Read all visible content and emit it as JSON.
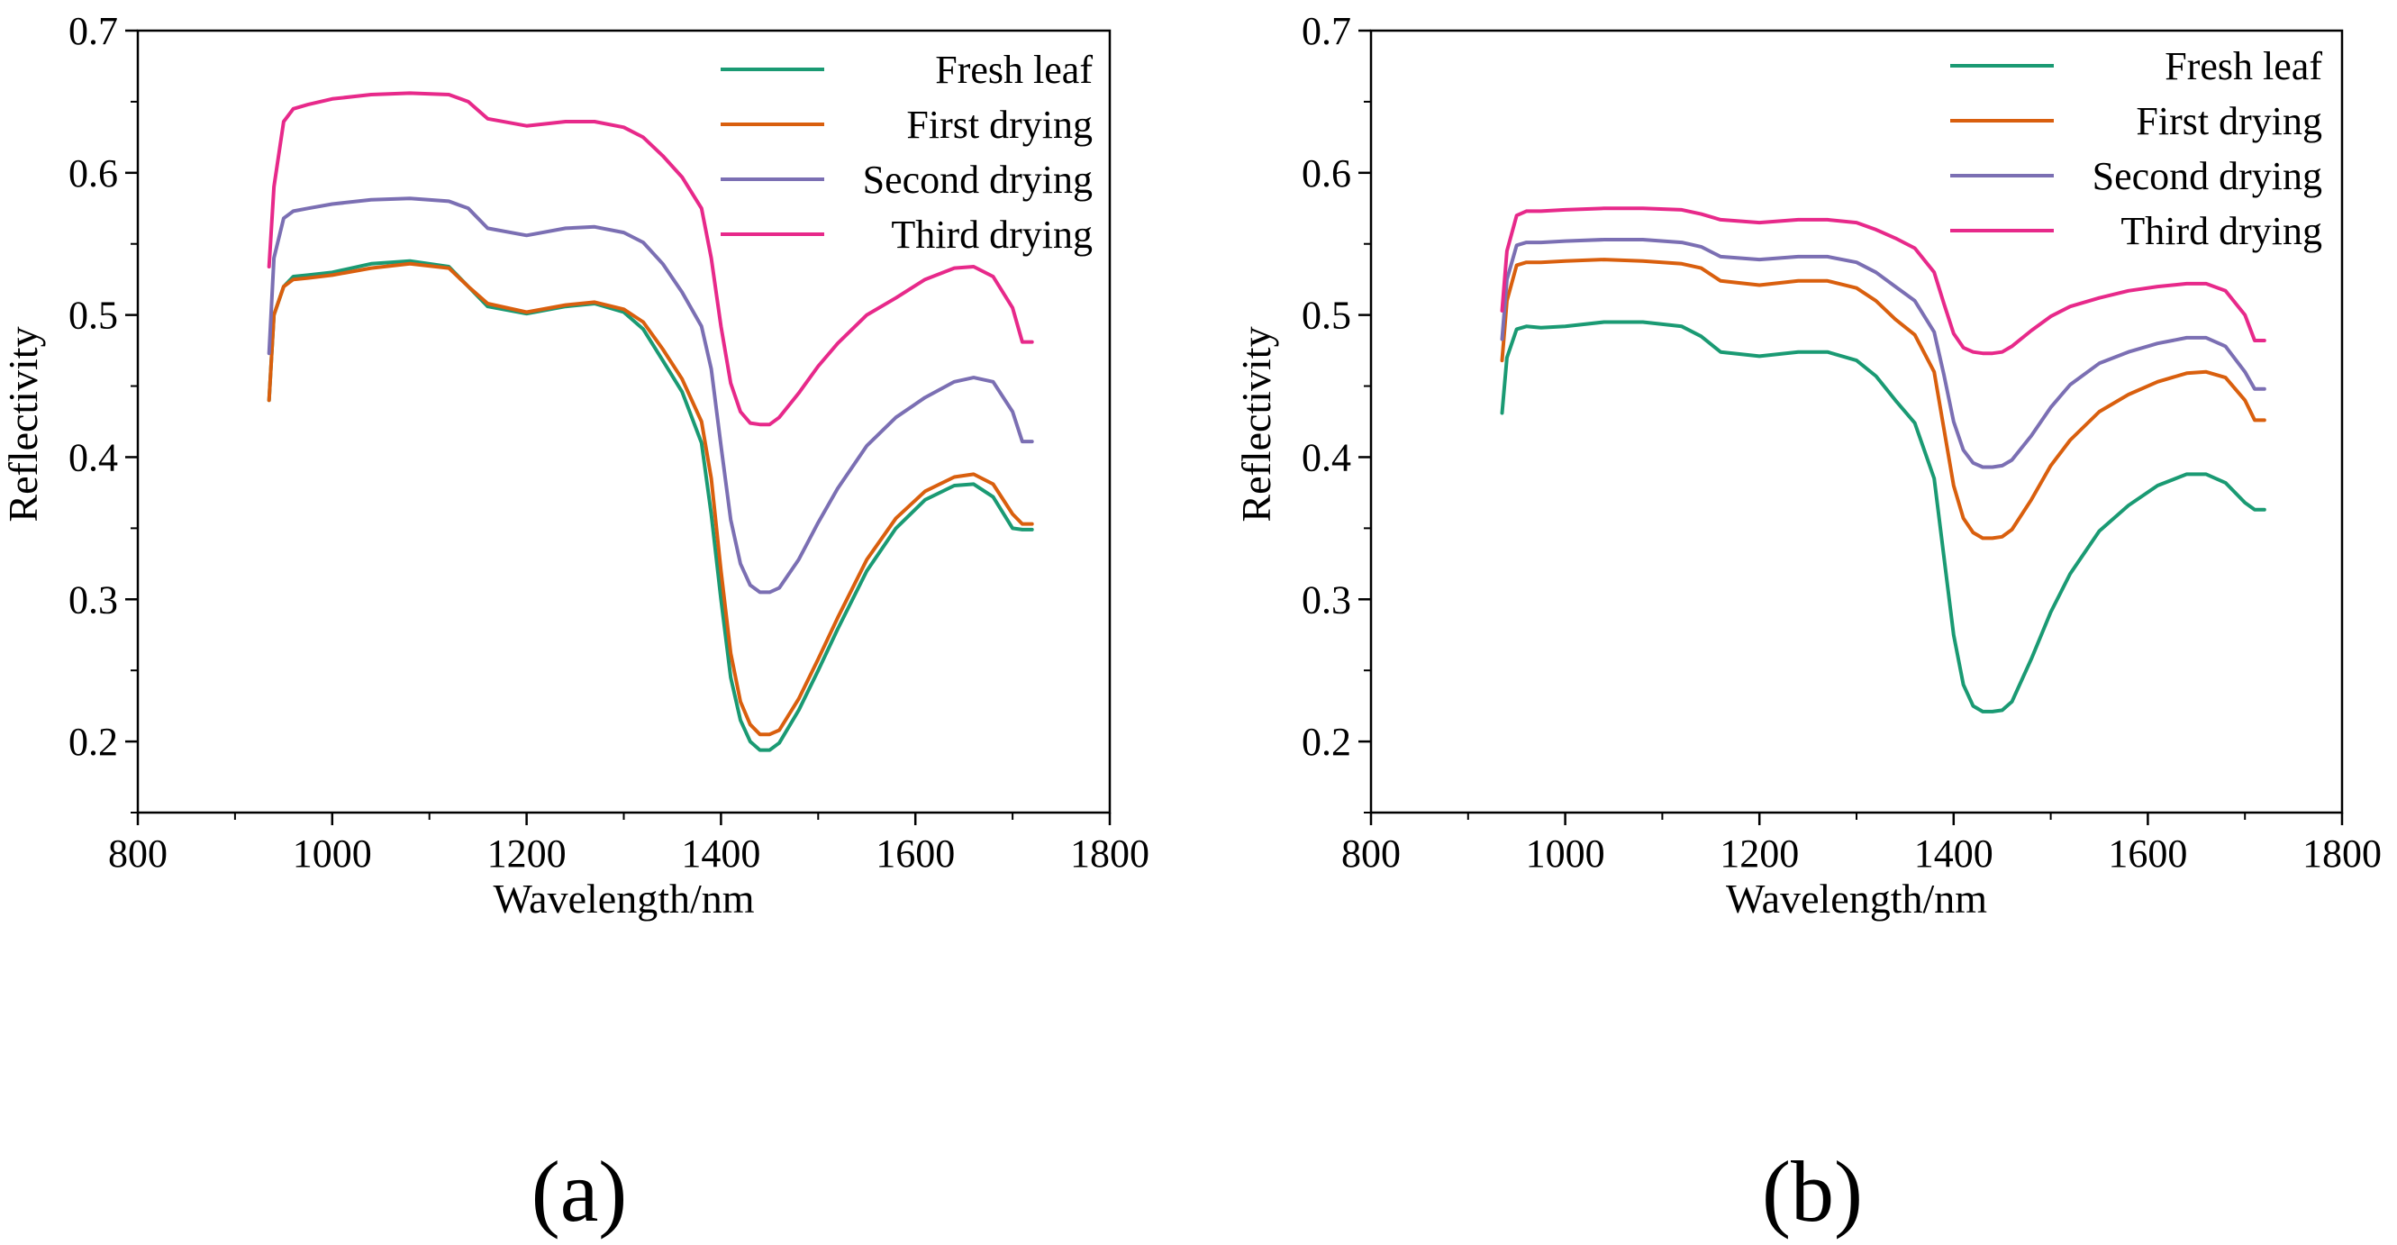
{
  "chart_data": [
    {
      "type": "line",
      "panel_label": "(a)",
      "title": "",
      "xlabel": "Wavelength/nm",
      "ylabel": "Reflectivity",
      "xlim": [
        800,
        1800
      ],
      "ylim": [
        0.15,
        0.7
      ],
      "xticks": [
        800,
        1000,
        1200,
        1400,
        1600,
        1800
      ],
      "yticks": [
        0.2,
        0.3,
        0.4,
        0.5,
        0.6,
        0.7
      ],
      "xtick_labels": [
        "800",
        "1000",
        "1200",
        "1400",
        "1600",
        "1800"
      ],
      "ytick_labels": [
        "0.2",
        "0.3",
        "0.4",
        "0.5",
        "0.6",
        "0.7"
      ],
      "grid": false,
      "legend_position": "top-right",
      "x": [
        935,
        940,
        950,
        960,
        975,
        1000,
        1040,
        1080,
        1120,
        1140,
        1160,
        1200,
        1240,
        1270,
        1300,
        1320,
        1340,
        1360,
        1380,
        1390,
        1400,
        1410,
        1420,
        1430,
        1440,
        1450,
        1460,
        1480,
        1500,
        1520,
        1550,
        1580,
        1610,
        1640,
        1660,
        1680,
        1700,
        1710,
        1720
      ],
      "series": [
        {
          "name": "Fresh leaf",
          "color": "#1a9a73",
          "values": [
            0.44,
            0.5,
            0.52,
            0.527,
            0.528,
            0.53,
            0.536,
            0.538,
            0.534,
            0.52,
            0.506,
            0.501,
            0.506,
            0.508,
            0.502,
            0.49,
            0.468,
            0.446,
            0.41,
            0.36,
            0.3,
            0.245,
            0.215,
            0.2,
            0.194,
            0.194,
            0.199,
            0.222,
            0.25,
            0.279,
            0.32,
            0.35,
            0.37,
            0.38,
            0.381,
            0.372,
            0.35,
            0.349,
            0.349
          ]
        },
        {
          "name": "First drying",
          "color": "#d95f0e",
          "values": [
            0.44,
            0.5,
            0.52,
            0.525,
            0.526,
            0.528,
            0.533,
            0.536,
            0.533,
            0.52,
            0.508,
            0.502,
            0.507,
            0.509,
            0.504,
            0.495,
            0.476,
            0.455,
            0.425,
            0.385,
            0.32,
            0.262,
            0.228,
            0.212,
            0.205,
            0.205,
            0.208,
            0.23,
            0.258,
            0.287,
            0.328,
            0.357,
            0.376,
            0.386,
            0.388,
            0.381,
            0.36,
            0.353,
            0.353
          ]
        },
        {
          "name": "Second drying",
          "color": "#7b6fb3",
          "values": [
            0.473,
            0.54,
            0.568,
            0.573,
            0.575,
            0.578,
            0.581,
            0.582,
            0.58,
            0.575,
            0.561,
            0.556,
            0.561,
            0.562,
            0.558,
            0.551,
            0.536,
            0.516,
            0.492,
            0.462,
            0.408,
            0.356,
            0.325,
            0.31,
            0.305,
            0.305,
            0.308,
            0.328,
            0.354,
            0.378,
            0.408,
            0.428,
            0.442,
            0.453,
            0.456,
            0.453,
            0.432,
            0.411,
            0.411
          ]
        },
        {
          "name": "Third drying",
          "color": "#e7298a",
          "values": [
            0.534,
            0.59,
            0.636,
            0.645,
            0.648,
            0.652,
            0.655,
            0.656,
            0.655,
            0.65,
            0.638,
            0.633,
            0.636,
            0.636,
            0.632,
            0.625,
            0.612,
            0.597,
            0.575,
            0.54,
            0.492,
            0.452,
            0.432,
            0.424,
            0.423,
            0.423,
            0.428,
            0.445,
            0.464,
            0.48,
            0.5,
            0.512,
            0.525,
            0.533,
            0.534,
            0.527,
            0.505,
            0.481,
            0.481
          ]
        }
      ]
    },
    {
      "type": "line",
      "panel_label": "(b)",
      "title": "",
      "xlabel": "Wavelength/nm",
      "ylabel": "Reflectivity",
      "xlim": [
        800,
        1800
      ],
      "ylim": [
        0.15,
        0.7
      ],
      "xticks": [
        800,
        1000,
        1200,
        1400,
        1600,
        1800
      ],
      "yticks": [
        0.2,
        0.3,
        0.4,
        0.5,
        0.6,
        0.7
      ],
      "xtick_labels": [
        "800",
        "1000",
        "1200",
        "1400",
        "1600",
        "1800"
      ],
      "ytick_labels": [
        "0.2",
        "0.3",
        "0.4",
        "0.5",
        "0.6",
        "0.7"
      ],
      "grid": false,
      "legend_position": "top-right",
      "x": [
        935,
        940,
        950,
        960,
        975,
        1000,
        1040,
        1080,
        1120,
        1140,
        1160,
        1200,
        1240,
        1270,
        1300,
        1320,
        1340,
        1360,
        1380,
        1390,
        1400,
        1410,
        1420,
        1430,
        1440,
        1450,
        1460,
        1480,
        1500,
        1520,
        1550,
        1580,
        1610,
        1640,
        1660,
        1680,
        1700,
        1710,
        1720
      ],
      "series": [
        {
          "name": "Fresh leaf",
          "color": "#1a9a73",
          "values": [
            0.431,
            0.47,
            0.49,
            0.492,
            0.491,
            0.492,
            0.495,
            0.495,
            0.492,
            0.485,
            0.474,
            0.471,
            0.474,
            0.474,
            0.468,
            0.457,
            0.44,
            0.424,
            0.385,
            0.33,
            0.275,
            0.24,
            0.225,
            0.221,
            0.221,
            0.222,
            0.228,
            0.258,
            0.291,
            0.318,
            0.348,
            0.366,
            0.38,
            0.388,
            0.388,
            0.382,
            0.368,
            0.363,
            0.363
          ]
        },
        {
          "name": "First drying",
          "color": "#d95f0e",
          "values": [
            0.468,
            0.51,
            0.535,
            0.537,
            0.537,
            0.538,
            0.539,
            0.538,
            0.536,
            0.533,
            0.524,
            0.521,
            0.524,
            0.524,
            0.519,
            0.51,
            0.497,
            0.486,
            0.46,
            0.42,
            0.38,
            0.357,
            0.347,
            0.343,
            0.343,
            0.344,
            0.349,
            0.37,
            0.394,
            0.412,
            0.432,
            0.444,
            0.453,
            0.459,
            0.46,
            0.456,
            0.44,
            0.426,
            0.426
          ]
        },
        {
          "name": "Second drying",
          "color": "#7b6fb3",
          "values": [
            0.483,
            0.525,
            0.549,
            0.551,
            0.551,
            0.552,
            0.553,
            0.553,
            0.551,
            0.548,
            0.541,
            0.539,
            0.541,
            0.541,
            0.537,
            0.53,
            0.52,
            0.51,
            0.488,
            0.458,
            0.425,
            0.405,
            0.396,
            0.393,
            0.393,
            0.394,
            0.398,
            0.415,
            0.435,
            0.451,
            0.466,
            0.474,
            0.48,
            0.484,
            0.484,
            0.478,
            0.46,
            0.448,
            0.448
          ]
        },
        {
          "name": "Third drying",
          "color": "#e7298a",
          "values": [
            0.503,
            0.545,
            0.57,
            0.573,
            0.573,
            0.574,
            0.575,
            0.575,
            0.574,
            0.571,
            0.567,
            0.565,
            0.567,
            0.567,
            0.565,
            0.56,
            0.554,
            0.547,
            0.53,
            0.508,
            0.487,
            0.477,
            0.474,
            0.473,
            0.473,
            0.474,
            0.478,
            0.489,
            0.499,
            0.506,
            0.512,
            0.517,
            0.52,
            0.522,
            0.522,
            0.517,
            0.5,
            0.482,
            0.482
          ]
        }
      ]
    }
  ]
}
